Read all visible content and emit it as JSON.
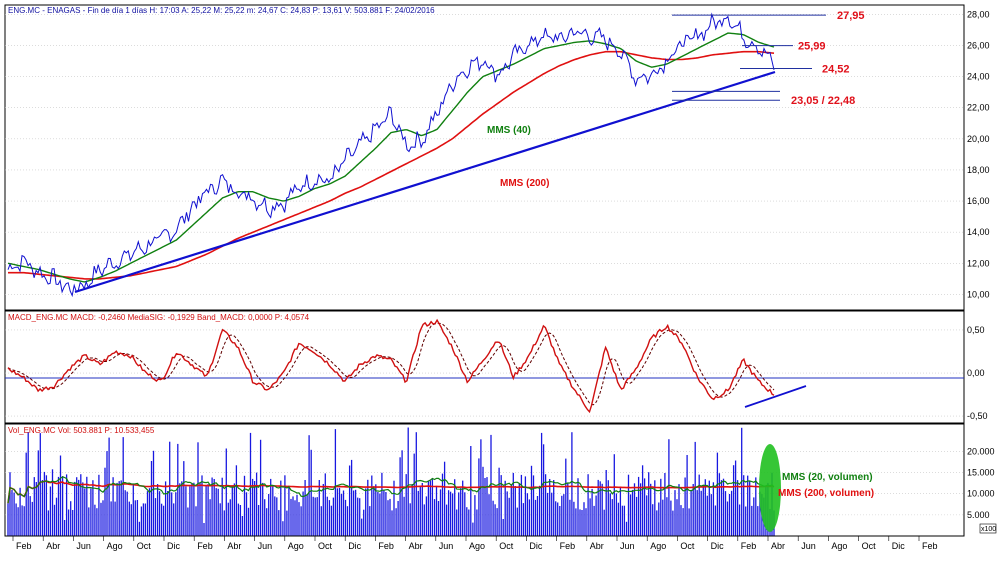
{
  "colors": {
    "price": "#1010d0",
    "mms40": "#108010",
    "mms200": "#e01010",
    "trend": "#1010d0",
    "level_line": "#2030a0",
    "level_text": "#e0101a",
    "macd": "#d01010",
    "volume": "#1818e0",
    "grid": "#c8c8c8",
    "header": "#1010a0",
    "highlight": "#20c020"
  },
  "header": {
    "price": "ENG.MC - ENAGAS - Fin de día 1 días H: 17:03 A: 25,22 M: 25,22 m: 24,67 C: 24,83 P: 13,61 V: 503.881 F: 24/02/2016",
    "macd": "MACD_ENG.MC MACD: -0,2460 MediaSIG: -0,1929 Band_MACD: 0,0000 P: 4,0574",
    "volume": "Vol_ENG.MC Vol: 503.881 P: 10.533,455"
  },
  "chart_data": [
    {
      "type": "line",
      "title": "ENG.MC - ENAGAS",
      "ylim": [
        9,
        28.6
      ],
      "y_ticks": [
        "28,00",
        "26,00",
        "24,00",
        "22,00",
        "20,00",
        "18,00",
        "16,00",
        "14,00",
        "12,00",
        "10,00"
      ],
      "x_labels": [
        "Feb",
        "Abr",
        "Jun",
        "Ago",
        "Oct",
        "Dic",
        "Feb",
        "Abr",
        "Jun",
        "Ago",
        "Oct",
        "Dic",
        "Feb",
        "Abr",
        "Jun",
        "Ago",
        "Oct",
        "Dic",
        "Feb",
        "Abr",
        "Jun",
        "Ago",
        "Oct",
        "Dic",
        "Feb",
        "Abr",
        "Jun",
        "Ago",
        "Oct",
        "Dic",
        "Feb"
      ],
      "series": [
        {
          "name": "Price",
          "values": [
            11.6,
            12.2,
            11.4,
            11.0,
            10.3,
            10.6,
            11.6,
            12.1,
            12.6,
            13.1,
            13.6,
            14.2,
            15.6,
            16.6,
            17.3,
            16.6,
            16.2,
            15.6,
            15.9,
            16.9,
            17.4,
            17.3,
            18.6,
            19.6,
            20.6,
            21.6,
            19.6,
            19.9,
            21.6,
            23.6,
            24.6,
            25.1,
            24.1,
            25.3,
            26.1,
            26.6,
            26.4,
            26.9,
            26.6,
            26.4,
            25.6,
            23.9,
            24.1,
            25.1,
            26.1,
            26.6,
            27.4,
            27.9,
            26.6,
            25.9,
            24.8
          ]
        },
        {
          "name": "MMS (40)",
          "values": [
            12.0,
            11.8,
            11.6,
            11.3,
            11.0,
            10.8,
            11.1,
            11.5,
            12.0,
            12.5,
            13.0,
            13.5,
            14.4,
            15.3,
            16.2,
            16.6,
            16.6,
            16.2,
            16.0,
            16.3,
            16.8,
            17.1,
            17.6,
            18.5,
            19.4,
            20.4,
            20.6,
            20.2,
            20.6,
            21.8,
            23.0,
            24.0,
            24.4,
            24.8,
            25.3,
            25.8,
            26.0,
            26.2,
            26.3,
            26.1,
            25.8,
            25.0,
            24.6,
            24.8,
            25.3,
            25.8,
            26.3,
            26.8,
            26.7,
            26.2,
            25.9
          ]
        },
        {
          "name": "MMS (200)",
          "values": [
            11.4,
            11.4,
            11.3,
            11.2,
            11.1,
            11.0,
            11.0,
            11.1,
            11.2,
            11.4,
            11.6,
            11.8,
            12.2,
            12.6,
            13.1,
            13.6,
            14.0,
            14.4,
            14.8,
            15.2,
            15.6,
            16.0,
            16.5,
            16.9,
            17.4,
            17.9,
            18.4,
            18.9,
            19.4,
            20.0,
            20.8,
            21.6,
            22.3,
            23.0,
            23.6,
            24.2,
            24.7,
            25.1,
            25.4,
            25.6,
            25.6,
            25.4,
            25.2,
            25.1,
            25.1,
            25.2,
            25.4,
            25.5,
            25.6,
            25.6,
            25.5
          ]
        }
      ],
      "annotations": [
        {
          "text": "MMS (40)",
          "color": "#108010"
        },
        {
          "text": "MMS (200)",
          "color": "#e01010"
        }
      ],
      "levels": [
        {
          "label": "27,95",
          "value": 27.95
        },
        {
          "label": "25,99",
          "value": 25.99
        },
        {
          "label": "24,52",
          "value": 24.52
        },
        {
          "label": "23,05 / 22,48",
          "value": 22.48
        }
      ]
    },
    {
      "type": "line",
      "title": "MACD_ENG.MC",
      "ylim": [
        -0.58,
        0.72
      ],
      "y_ticks": [
        "0,50",
        "0,00",
        "-0,50"
      ],
      "series": [
        {
          "name": "MACD",
          "values": [
            0.05,
            -0.05,
            -0.2,
            -0.15,
            0.05,
            0.2,
            0.1,
            0.25,
            0.2,
            0.0,
            -0.1,
            0.25,
            0.1,
            -0.05,
            0.5,
            0.3,
            -0.1,
            -0.2,
            0.0,
            0.35,
            0.25,
            0.1,
            -0.1,
            0.1,
            0.2,
            0.15,
            -0.1,
            0.55,
            0.6,
            0.3,
            -0.1,
            0.15,
            0.4,
            -0.05,
            0.2,
            0.55,
            0.1,
            -0.2,
            -0.45,
            0.3,
            -0.2,
            0.05,
            0.4,
            0.55,
            0.35,
            -0.05,
            -0.3,
            -0.2,
            0.15,
            -0.1,
            -0.25
          ]
        }
      ]
    },
    {
      "type": "bar",
      "title": "Vol_ENG.MC",
      "ylim": [
        0,
        26500
      ],
      "y_ticks": [
        "20.000",
        "15.000",
        "10.000",
        "5.000"
      ],
      "unit": "x100",
      "series": [
        {
          "name": "MMS (20, volumen)",
          "color": "#108010"
        },
        {
          "name": "MMS (200, volumen)",
          "color": "#e01010"
        }
      ]
    }
  ]
}
